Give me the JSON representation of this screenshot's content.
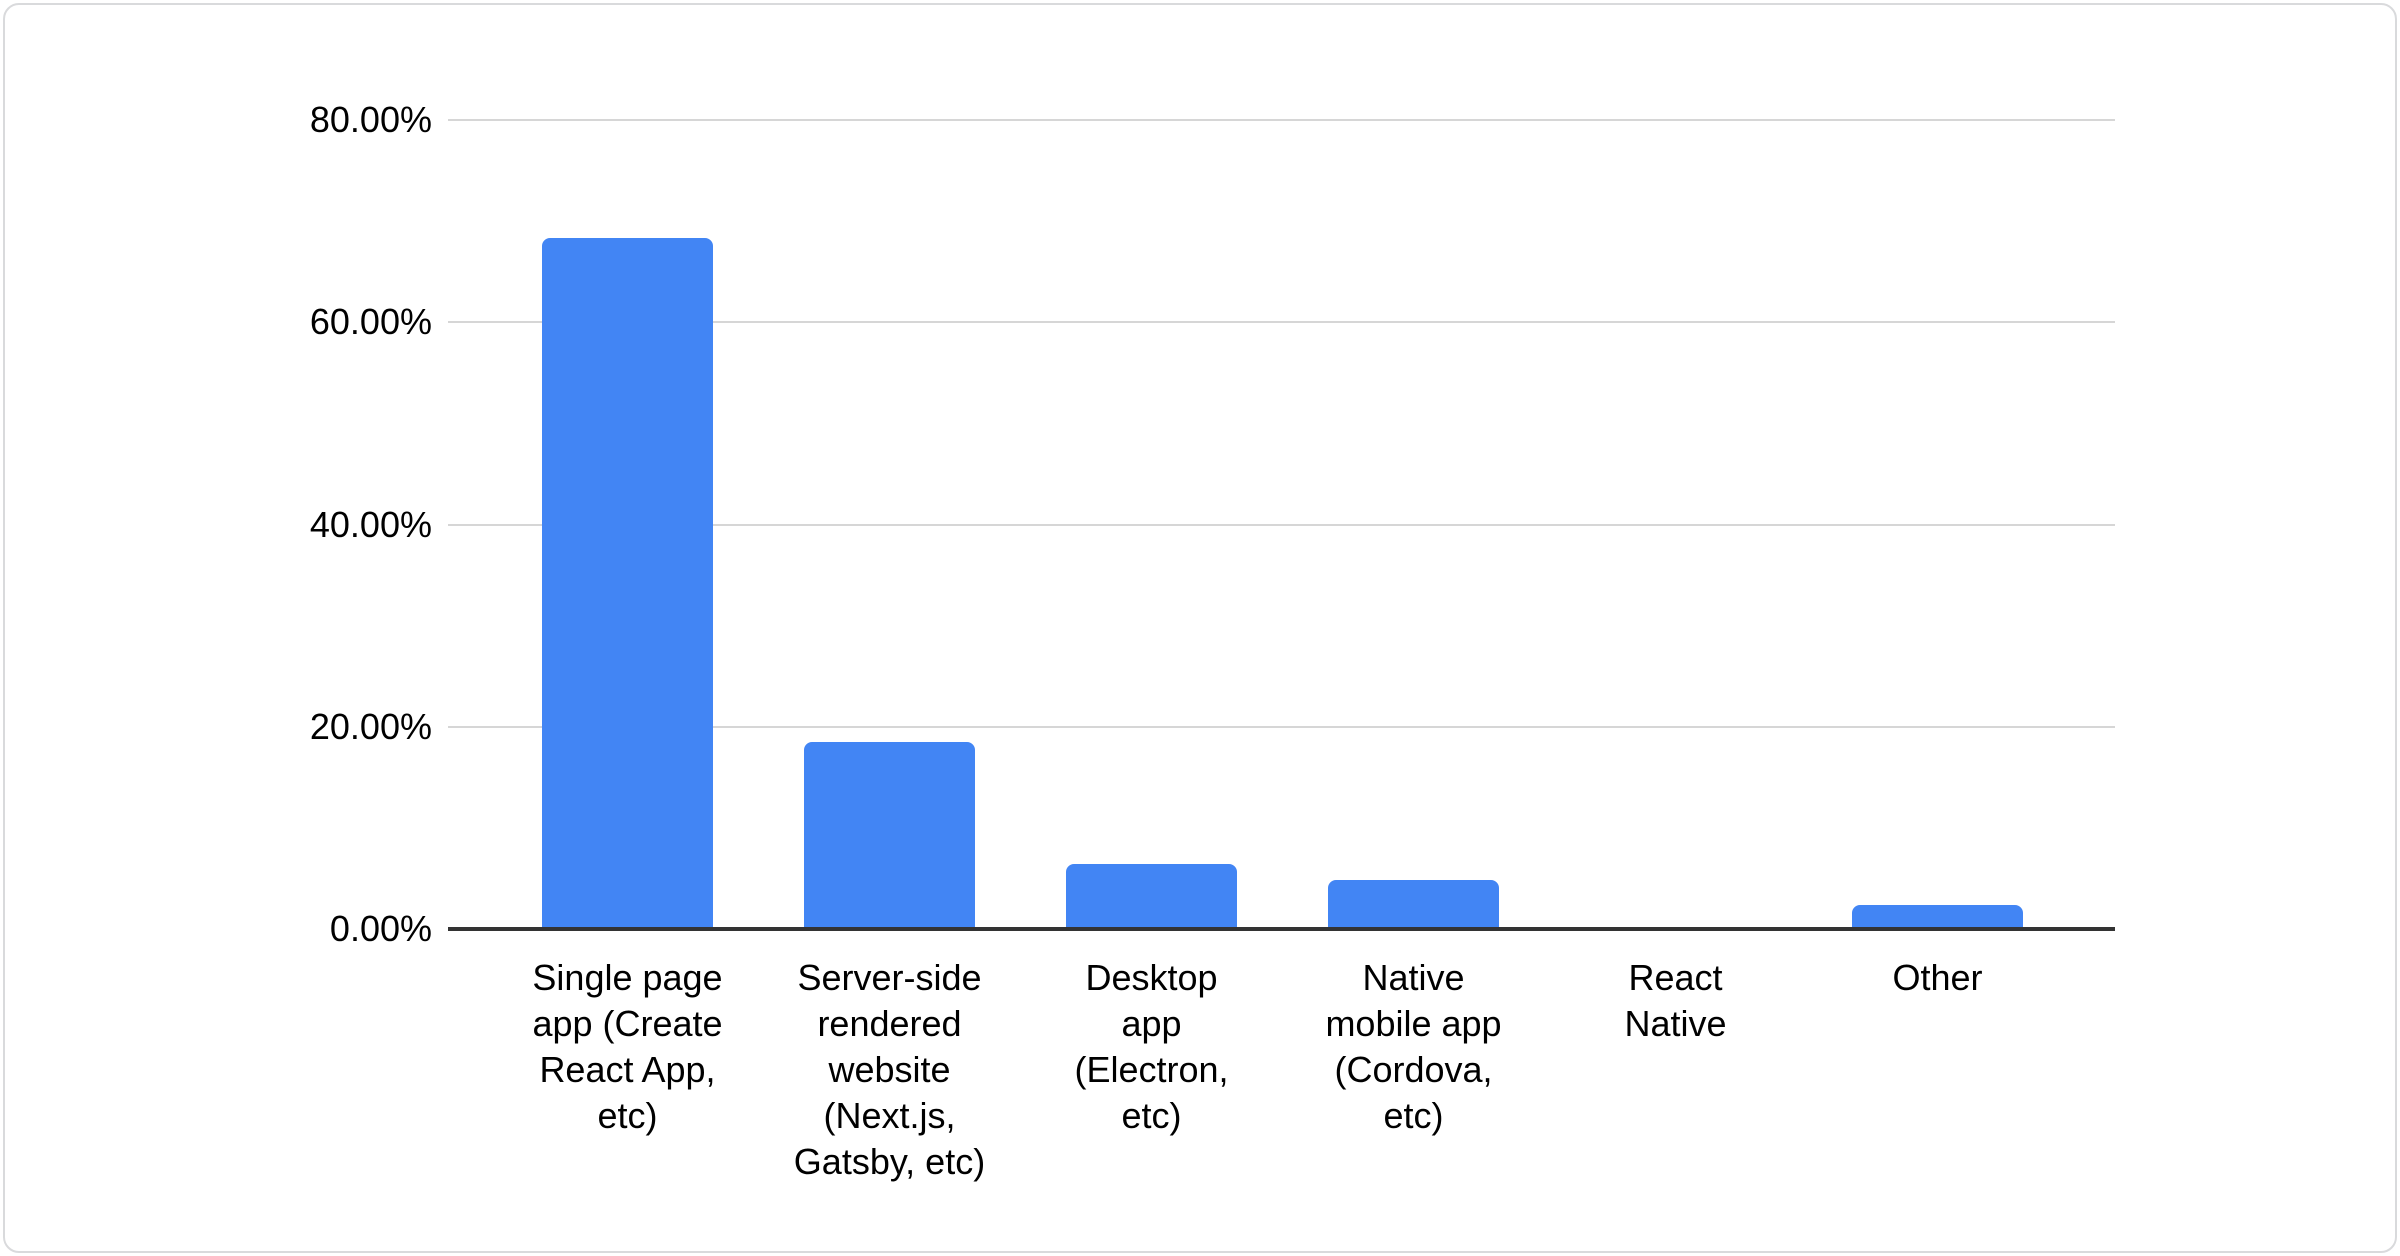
{
  "card": {
    "background": "#ffffff",
    "border_color": "#d9dadc"
  },
  "colors": {
    "bar": "#4285f4",
    "axis_line": "#333333",
    "gridline": "#d6d6d6",
    "text": "#000000"
  },
  "chart_data": {
    "type": "bar",
    "title": "",
    "xlabel": "",
    "ylabel": "",
    "categories": [
      "Single page app (Create React App, etc)",
      "Server-side rendered website (Next.js, Gatsby, etc)",
      "Desktop app (Electron, etc)",
      "Native mobile app (Cordova, etc)",
      "React Native",
      "Other"
    ],
    "label_lines": [
      [
        "Single page",
        "app (Create",
        "React App,",
        "etc)"
      ],
      [
        "Server-side",
        "rendered",
        "website",
        "(Next.js,",
        "Gatsby, etc)"
      ],
      [
        "Desktop",
        "app",
        "(Electron,",
        "etc)"
      ],
      [
        "Native",
        "mobile app",
        "(Cordova,",
        "etc)"
      ],
      [
        "React",
        "Native"
      ],
      [
        "Other"
      ]
    ],
    "values": [
      68.3,
      18.5,
      6.4,
      4.8,
      0,
      2.4
    ],
    "value_unit": "%",
    "ylim": [
      0,
      80
    ],
    "yticks": [
      0,
      20,
      40,
      60,
      80
    ],
    "ytick_labels": [
      "0.00%",
      "20.00%",
      "40.00%",
      "60.00%",
      "80.00%"
    ],
    "grid": true,
    "legend": "none",
    "bar_color": "#4285f4"
  }
}
